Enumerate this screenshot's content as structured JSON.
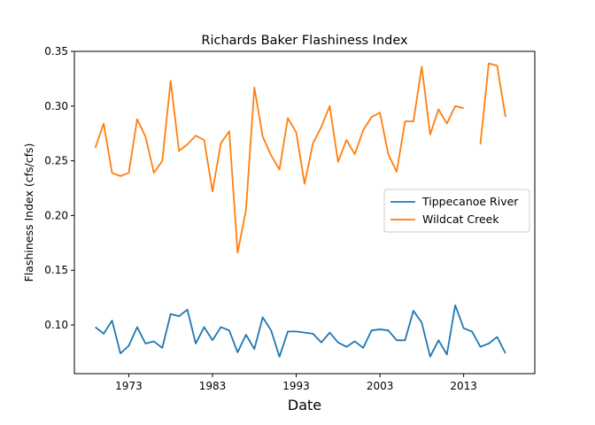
{
  "chart_data": {
    "type": "line",
    "title": "Richards Baker Flashiness Index",
    "xlabel": "Date",
    "ylabel": "Flashiness Index (cfs/cfs)",
    "xlim": [
      1966.5,
      2021.5
    ],
    "ylim": [
      0.0555,
      0.35
    ],
    "x_ticks": [
      1973,
      1983,
      1993,
      2003,
      2013
    ],
    "x_tick_labels": [
      "1973",
      "1983",
      "1993",
      "2003",
      "2013"
    ],
    "y_ticks": [
      0.1,
      0.15,
      0.2,
      0.25,
      0.3,
      0.35
    ],
    "y_tick_labels": [
      "0.10",
      "0.15",
      "0.20",
      "0.25",
      "0.30",
      "0.35"
    ],
    "grid": false,
    "legend": {
      "position": "center-right"
    },
    "x": [
      1969,
      1970,
      1971,
      1972,
      1973,
      1974,
      1975,
      1976,
      1977,
      1978,
      1979,
      1980,
      1981,
      1982,
      1983,
      1984,
      1985,
      1986,
      1987,
      1988,
      1989,
      1990,
      1991,
      1992,
      1993,
      1994,
      1995,
      1996,
      1997,
      1998,
      1999,
      2000,
      2001,
      2002,
      2003,
      2004,
      2005,
      2006,
      2007,
      2008,
      2009,
      2010,
      2011,
      2012,
      2013,
      2014,
      2015,
      2016,
      2017,
      2018,
      2019
    ],
    "series": [
      {
        "name": "Tippecanoe River",
        "color": "#1f77b4",
        "values": [
          0.098,
          0.092,
          0.104,
          0.074,
          0.081,
          0.098,
          0.083,
          0.085,
          0.079,
          0.11,
          0.108,
          0.114,
          0.083,
          0.098,
          0.086,
          0.098,
          0.095,
          0.075,
          0.091,
          0.078,
          0.107,
          0.095,
          0.071,
          0.094,
          0.094,
          0.093,
          0.092,
          0.084,
          0.093,
          0.084,
          0.08,
          0.085,
          0.079,
          0.095,
          0.096,
          0.095,
          0.086,
          0.086,
          0.113,
          0.102,
          0.071,
          0.086,
          0.073,
          0.118,
          0.097,
          0.094,
          0.08,
          0.083,
          0.089,
          0.074,
          null
        ]
      },
      {
        "name": "Wildcat Creek",
        "color": "#ff7f0e",
        "values": [
          0.262,
          0.284,
          0.239,
          0.236,
          0.239,
          0.288,
          0.272,
          0.239,
          0.25,
          0.323,
          0.259,
          0.265,
          0.273,
          0.269,
          0.222,
          0.266,
          0.277,
          0.166,
          0.205,
          0.317,
          0.272,
          0.255,
          0.242,
          0.289,
          0.276,
          0.229,
          0.266,
          0.281,
          0.3,
          0.249,
          0.269,
          0.256,
          0.278,
          0.29,
          0.294,
          0.256,
          0.24,
          0.286,
          0.286,
          0.336,
          0.274,
          0.297,
          0.284,
          0.3,
          0.298,
          null,
          0.265,
          0.339,
          0.337,
          0.29,
          null
        ]
      }
    ]
  }
}
